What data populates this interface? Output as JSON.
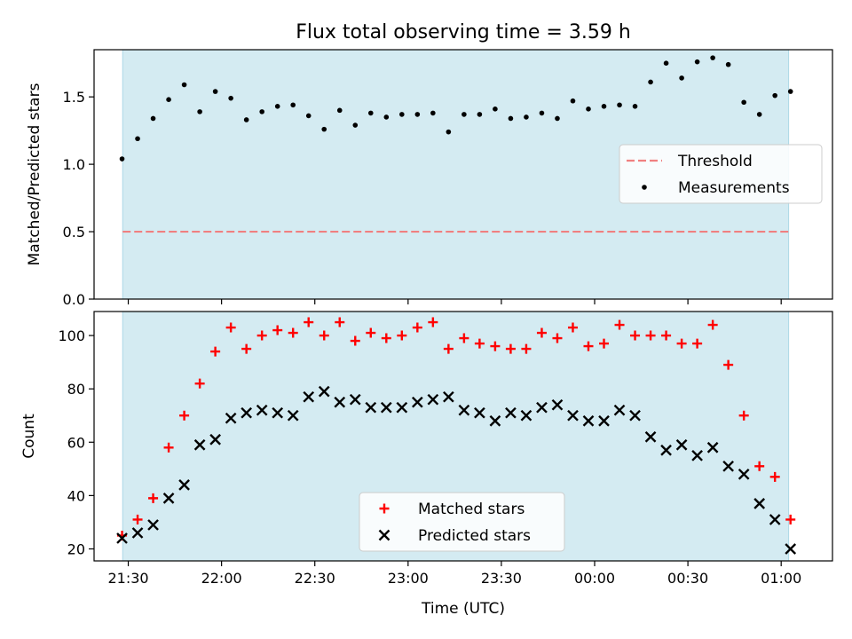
{
  "title": "Flux total observing time = 3.59 h",
  "colors": {
    "shade": "#add8e6",
    "matched": "#ff0000",
    "predicted": "#000000",
    "measurement": "#000000",
    "threshold": "#f08080"
  },
  "x_axis": {
    "label": "Time (UTC)",
    "ticks": [
      {
        "t": 0,
        "label": "21:30"
      },
      {
        "t": 30,
        "label": "22:00"
      },
      {
        "t": 60,
        "label": "22:30"
      },
      {
        "t": 90,
        "label": "23:00"
      },
      {
        "t": 120,
        "label": "23:30"
      },
      {
        "t": 150,
        "label": "00:00"
      },
      {
        "t": 180,
        "label": "00:30"
      },
      {
        "t": 210,
        "label": "01:00"
      }
    ]
  },
  "chart_data": [
    {
      "type": "scatter",
      "ylabel": "Matched/Predicted stars",
      "ylim": [
        0,
        1.85
      ],
      "yticks": [
        "0.0",
        "0.5",
        "1.0",
        "1.5"
      ],
      "ytick_values": [
        0,
        0.5,
        1.0,
        1.5
      ],
      "shaded_span": [
        21.47,
        25.04
      ],
      "threshold": {
        "name": "Threshold",
        "value": 0.5,
        "style": "dashed"
      },
      "legend": {
        "placement": "center-right",
        "entries": [
          "Threshold",
          "Measurements"
        ]
      },
      "series": [
        {
          "name": "Measurements",
          "marker": "dot",
          "x": [
            -2,
            3,
            8,
            13,
            18,
            23,
            28,
            33,
            38,
            43,
            48,
            53,
            58,
            63,
            68,
            73,
            78,
            83,
            88,
            93,
            98,
            103,
            108,
            113,
            118,
            123,
            128,
            133,
            138,
            143,
            148,
            153,
            158,
            163,
            168,
            173,
            178,
            183,
            188,
            193,
            198,
            203,
            208,
            213
          ],
          "y": [
            1.04,
            1.19,
            1.34,
            1.48,
            1.59,
            1.39,
            1.54,
            1.49,
            1.33,
            1.39,
            1.43,
            1.44,
            1.36,
            1.26,
            1.4,
            1.29,
            1.38,
            1.35,
            1.37,
            1.37,
            1.38,
            1.24,
            1.37,
            1.37,
            1.41,
            1.34,
            1.35,
            1.38,
            1.34,
            1.47,
            1.41,
            1.43,
            1.44,
            1.43,
            1.61,
            1.75,
            1.64,
            1.76,
            1.79,
            1.74,
            1.46,
            1.37,
            1.51,
            1.54
          ]
        }
      ]
    },
    {
      "type": "scatter",
      "ylabel": "Count",
      "ylim": [
        15.5,
        109
      ],
      "yticks": [
        "20",
        "40",
        "60",
        "80",
        "100"
      ],
      "ytick_values": [
        20,
        40,
        60,
        80,
        100
      ],
      "shaded_span": [
        21.47,
        25.04
      ],
      "legend": {
        "placement": "bottom-center",
        "entries": [
          "Matched stars",
          "Predicted stars"
        ]
      },
      "series": [
        {
          "name": "Matched stars",
          "marker": "plus",
          "x": [
            -2,
            3,
            8,
            13,
            18,
            23,
            28,
            33,
            38,
            43,
            48,
            53,
            58,
            63,
            68,
            73,
            78,
            83,
            88,
            93,
            98,
            103,
            108,
            113,
            118,
            123,
            128,
            133,
            138,
            143,
            148,
            153,
            158,
            163,
            168,
            173,
            178,
            183,
            188,
            193,
            198,
            203,
            208,
            213
          ],
          "y": [
            25,
            31,
            39,
            58,
            70,
            82,
            94,
            103,
            95,
            100,
            102,
            101,
            105,
            100,
            105,
            98,
            101,
            99,
            100,
            103,
            105,
            95,
            99,
            97,
            96,
            95,
            95,
            101,
            99,
            103,
            96,
            97,
            104,
            100,
            100,
            100,
            97,
            97,
            104,
            89,
            70,
            51,
            47,
            31
          ]
        },
        {
          "name": "Predicted stars",
          "marker": "x",
          "x": [
            -2,
            3,
            8,
            13,
            18,
            23,
            28,
            33,
            38,
            43,
            48,
            53,
            58,
            63,
            68,
            73,
            78,
            83,
            88,
            93,
            98,
            103,
            108,
            113,
            118,
            123,
            128,
            133,
            138,
            143,
            148,
            153,
            158,
            163,
            168,
            173,
            178,
            183,
            188,
            193,
            198,
            203,
            208,
            213
          ],
          "y": [
            24,
            26,
            29,
            39,
            44,
            59,
            61,
            69,
            71,
            72,
            71,
            70,
            77,
            79,
            75,
            76,
            73,
            73,
            73,
            75,
            76,
            77,
            72,
            71,
            68,
            71,
            70,
            73,
            74,
            70,
            68,
            68,
            72,
            70,
            62,
            57,
            59,
            55,
            58,
            51,
            48,
            37,
            31,
            20
          ]
        }
      ]
    }
  ]
}
